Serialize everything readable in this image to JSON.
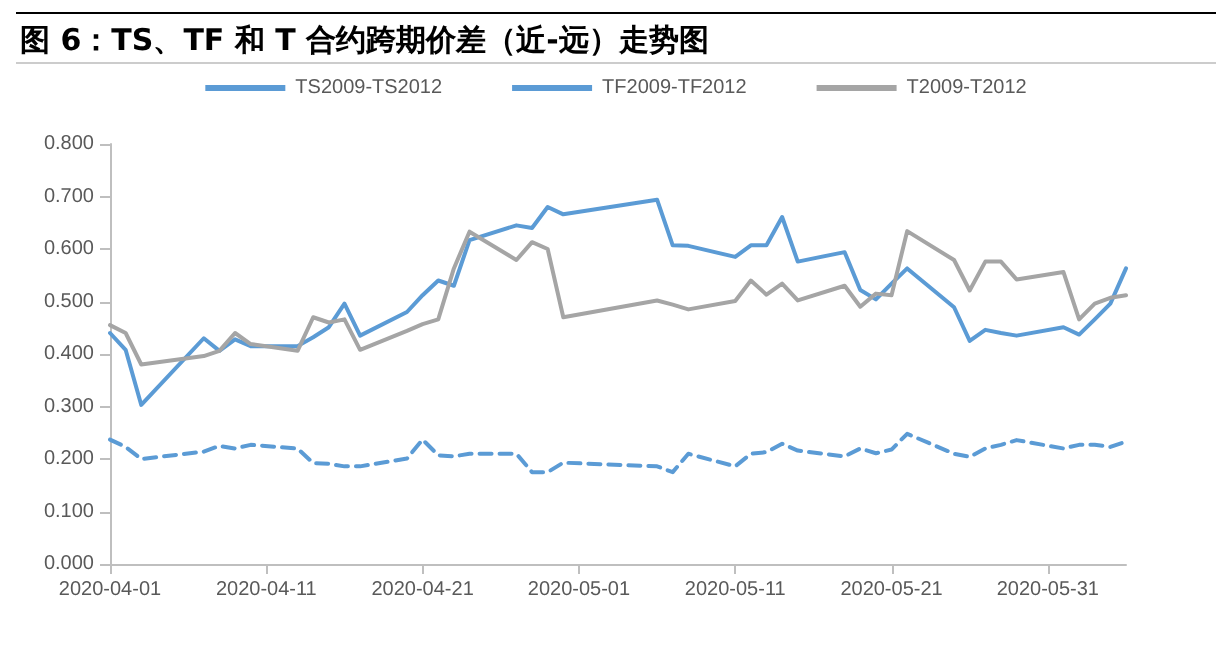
{
  "chart_data": {
    "type": "line",
    "title": "图 6：TS、TF 和 T 合约跨期价差（近-远）走势图",
    "x": [
      "2020-04-01",
      "2020-04-02",
      "2020-04-03",
      "2020-04-07",
      "2020-04-08",
      "2020-04-09",
      "2020-04-10",
      "2020-04-13",
      "2020-04-14",
      "2020-04-15",
      "2020-04-16",
      "2020-04-17",
      "2020-04-20",
      "2020-04-21",
      "2020-04-22",
      "2020-04-23",
      "2020-04-24",
      "2020-04-27",
      "2020-04-28",
      "2020-04-29",
      "2020-04-30",
      "2020-05-06",
      "2020-05-07",
      "2020-05-08",
      "2020-05-11",
      "2020-05-12",
      "2020-05-13",
      "2020-05-14",
      "2020-05-15",
      "2020-05-18",
      "2020-05-19",
      "2020-05-20",
      "2020-05-21",
      "2020-05-22",
      "2020-05-25",
      "2020-05-26",
      "2020-05-27",
      "2020-05-28",
      "2020-05-29",
      "2020-06-01",
      "2020-06-02",
      "2020-06-03",
      "2020-06-04",
      "2020-06-05"
    ],
    "series": [
      {
        "name": "TS2009-TS2012",
        "color": "#5b9bd5",
        "line_style": "dashed",
        "values": [
          0.237,
          0.223,
          0.2,
          0.214,
          0.225,
          0.22,
          0.227,
          0.22,
          0.192,
          0.191,
          0.186,
          0.186,
          0.201,
          0.237,
          0.207,
          0.205,
          0.21,
          0.21,
          0.175,
          0.175,
          0.193,
          0.186,
          0.175,
          0.21,
          0.186,
          0.21,
          0.213,
          0.229,
          0.216,
          0.205,
          0.22,
          0.211,
          0.218,
          0.248,
          0.21,
          0.204,
          0.22,
          0.227,
          0.236,
          0.22,
          0.227,
          0.227,
          0.223,
          0.233
        ]
      },
      {
        "name": "TF2009-TF2012",
        "color": "#5b9bd5",
        "line_style": "solid",
        "values": [
          0.44,
          0.408,
          0.303,
          0.43,
          0.406,
          0.428,
          0.415,
          0.415,
          0.432,
          0.451,
          0.496,
          0.435,
          0.48,
          0.512,
          0.54,
          0.53,
          0.617,
          0.645,
          0.64,
          0.68,
          0.666,
          0.694,
          0.607,
          0.606,
          0.585,
          0.607,
          0.607,
          0.661,
          0.576,
          0.594,
          0.522,
          0.504,
          0.534,
          0.563,
          0.489,
          0.425,
          0.446,
          0.44,
          0.435,
          0.451,
          0.437,
          0.466,
          0.496,
          0.563
        ]
      },
      {
        "name": "T2009-T2012",
        "color": "#a5a5a5",
        "line_style": "solid",
        "values": [
          0.455,
          0.44,
          0.38,
          0.396,
          0.406,
          0.44,
          0.419,
          0.406,
          0.47,
          0.46,
          0.466,
          0.408,
          0.444,
          0.457,
          0.466,
          0.563,
          0.633,
          0.579,
          0.613,
          0.6,
          0.47,
          0.502,
          0.494,
          0.485,
          0.501,
          0.54,
          0.513,
          0.534,
          0.502,
          0.53,
          0.49,
          0.515,
          0.512,
          0.634,
          0.579,
          0.521,
          0.576,
          0.576,
          0.542,
          0.556,
          0.466,
          0.496,
          0.507,
          0.512
        ]
      }
    ],
    "xlim": [
      "2020-04-01",
      "2020-06-05"
    ],
    "xticks": [
      "2020-04-01",
      "2020-04-11",
      "2020-04-21",
      "2020-05-01",
      "2020-05-11",
      "2020-05-21",
      "2020-05-31"
    ],
    "ylim": [
      0,
      0.8
    ],
    "yticks": [
      {
        "value": 0,
        "label": "0.000"
      },
      {
        "value": 0.1,
        "label": "0.100"
      },
      {
        "value": 0.2,
        "label": "0.200"
      },
      {
        "value": 0.3,
        "label": "0.300"
      },
      {
        "value": 0.4,
        "label": "0.400"
      },
      {
        "value": 0.5,
        "label": "0.500"
      },
      {
        "value": 0.6,
        "label": "0.600"
      },
      {
        "value": 0.7,
        "label": "0.700"
      },
      {
        "value": 0.8,
        "label": "0.800"
      }
    ],
    "grid": false,
    "legend": "top",
    "marker": "none"
  }
}
